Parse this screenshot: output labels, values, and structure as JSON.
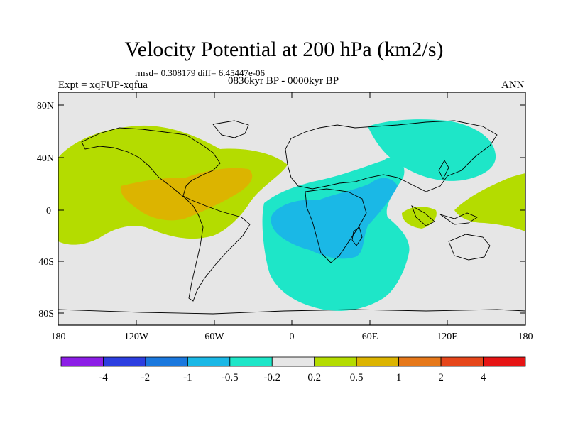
{
  "title": "Velocity Potential at 200 hPa (km2/s)",
  "stats": "rmsd= 0.308179 diff= 6.45447e-06",
  "experiment": "Expt = xqFUP-xqfua",
  "period": "0836kyr BP - 0000kyr BP",
  "season": "ANN",
  "map": {
    "lat_ticks": [
      "80N",
      "40N",
      "0",
      "40S",
      "80S"
    ],
    "lon_ticks": [
      "180",
      "120W",
      "60W",
      "0",
      "60E",
      "120E",
      "180"
    ]
  },
  "colorbar": {
    "labels": [
      "-4",
      "-2",
      "-1",
      "-0.5",
      "-0.2",
      "0.2",
      "0.5",
      "1",
      "2",
      "4"
    ],
    "colors": [
      "#8c1ee6",
      "#2c3ee0",
      "#1a78de",
      "#1ab8e6",
      "#1ee6c8",
      "#e6e6e6",
      "#b4dc00",
      "#dcb400",
      "#e6781a",
      "#e6461a",
      "#e61414"
    ]
  },
  "colors": {
    "background": "#e6e6e6",
    "positive_weak": "#b4dc00",
    "positive_mid": "#dcb400",
    "negative_weak": "#1ee6c8",
    "negative_mid": "#1ab8e6"
  }
}
